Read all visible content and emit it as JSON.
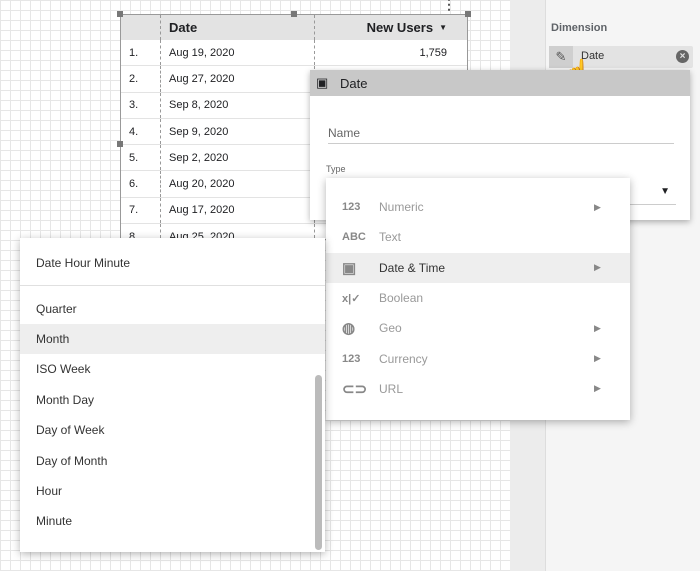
{
  "table": {
    "headers": [
      "",
      "Date",
      "New Users"
    ],
    "sort_icon": "caret-down-icon",
    "rows": [
      [
        "1.",
        "Aug 19, 2020",
        "1,759"
      ],
      [
        "2.",
        "Aug 27, 2020",
        ""
      ],
      [
        "3.",
        "Sep 8, 2020",
        ""
      ],
      [
        "4.",
        "Sep 9, 2020",
        ""
      ],
      [
        "5.",
        "Sep 2, 2020",
        ""
      ],
      [
        "6.",
        "Aug 20, 2020",
        ""
      ],
      [
        "7.",
        "Aug 17, 2020",
        ""
      ],
      [
        "8.",
        "Aug 25, 2020",
        ""
      ]
    ]
  },
  "panel": {
    "dimension_label": "Dimension",
    "chip_label": "Date"
  },
  "dialog": {
    "title": "Date",
    "name_placeholder": "Name",
    "type_label": "Type"
  },
  "type_menu": [
    {
      "icon": "123",
      "label": "Numeric",
      "arrow": true
    },
    {
      "icon": "ABC",
      "label": "Text",
      "arrow": false
    },
    {
      "icon": "calendar-icon",
      "label": "Date & Time",
      "arrow": true,
      "active": true
    },
    {
      "icon": "x|✓",
      "label": "Boolean",
      "arrow": false
    },
    {
      "icon": "globe-icon",
      "label": "Geo",
      "arrow": true
    },
    {
      "icon": "123",
      "label": "Currency",
      "arrow": true
    },
    {
      "icon": "link-icon",
      "label": "URL",
      "arrow": true
    }
  ],
  "sub_menu": {
    "top": "Date Hour Minute",
    "items": [
      "Quarter",
      "Month",
      "ISO Week",
      "Month Day",
      "Day of Week",
      "Day of Month",
      "Hour",
      "Minute"
    ],
    "selected": "Month"
  }
}
